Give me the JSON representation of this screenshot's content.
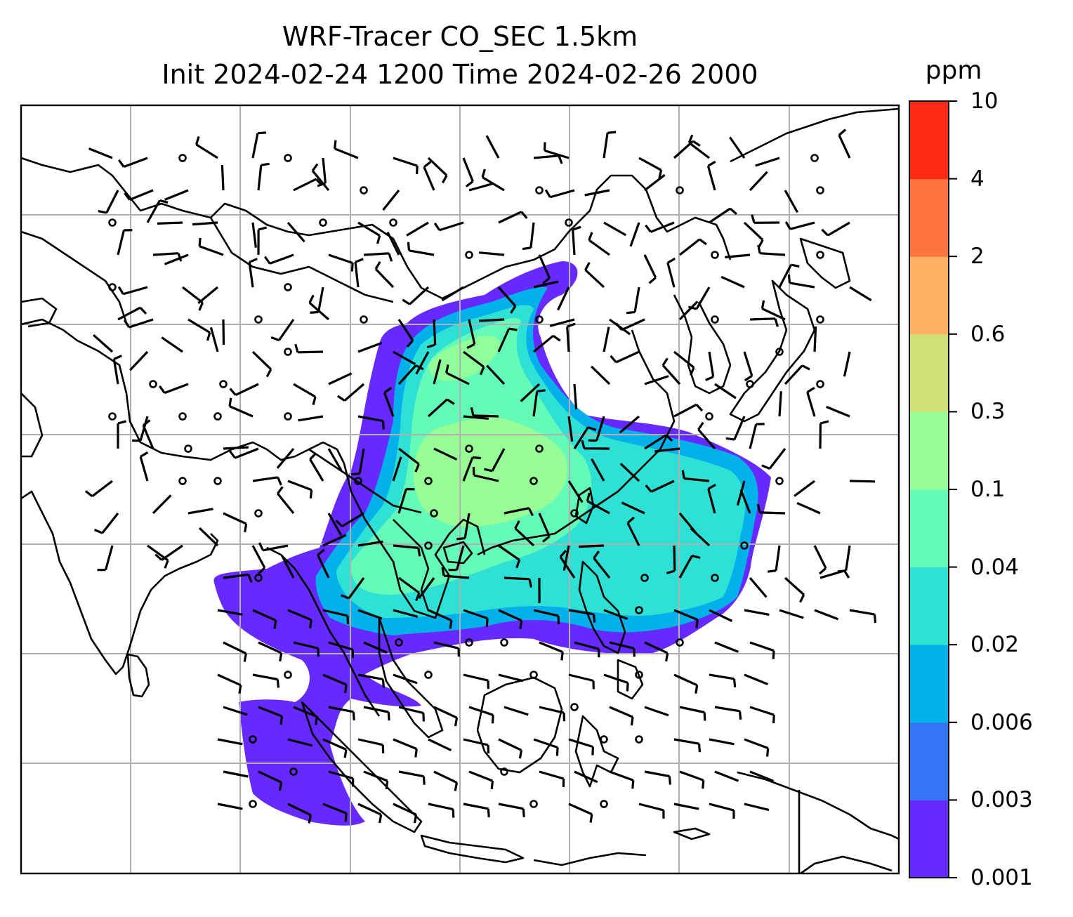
{
  "title_line1": "WRF-Tracer CO_SEC 1.5km",
  "title_line2": "Init 2024-02-24 1200 Time 2024-02-26 2000",
  "colorbar": {
    "unit": "ppm",
    "levels": [
      "0.001",
      "0.003",
      "0.006",
      "0.02",
      "0.04",
      "0.1",
      "0.3",
      "0.6",
      "2",
      "4",
      "10"
    ],
    "colors": [
      "#6629fe",
      "#3574f5",
      "#03b1ea",
      "#2fe1d5",
      "#63fbb7",
      "#97fe96",
      "#cde178",
      "#feb062",
      "#fe743e",
      "#fe2a16"
    ]
  },
  "map": {
    "frame_color": "#000000",
    "grid_color": "#b0b0b0",
    "coastline_color": "#000000",
    "wind_barb_color": "#000000",
    "grid_columns": 8,
    "grid_rows": 7
  }
}
